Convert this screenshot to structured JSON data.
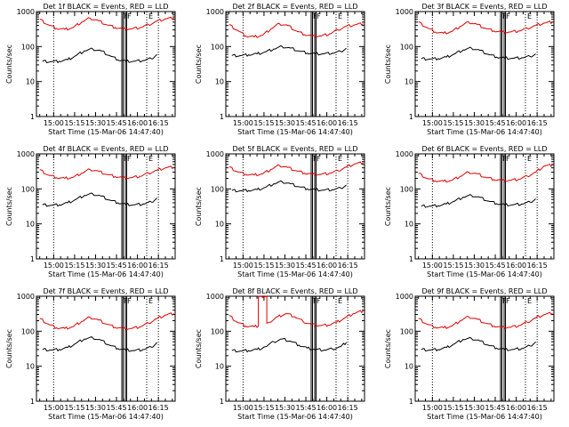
{
  "figure": {
    "colors": {
      "events": "#000000",
      "lld": "#e00000",
      "axis": "#000000",
      "background": "#ffffff"
    }
  },
  "chart_data": [
    {
      "type": "line",
      "title": "Det 1f BLACK = Events, RED = LLD",
      "xlabel": "Start Time (15-Mar-06 14:47:40)",
      "ylabel": "Counts/sec",
      "yscale": "log",
      "ylim": [
        1,
        1000
      ],
      "xlim": [
        "14:47:40",
        "16:27:00"
      ],
      "x_ticks": [
        "15:00",
        "15:15",
        "15:30",
        "15:45",
        "16:00",
        "16:15"
      ],
      "y_ticks": [
        "1",
        "10",
        "100",
        "1000"
      ],
      "markers": [
        "F",
        "F",
        "E"
      ],
      "series": [
        {
          "name": "BLACK = Events",
          "x": [
            "14:52",
            "14:58",
            "15:04",
            "15:10",
            "15:16",
            "15:22",
            "15:28",
            "15:34",
            "15:40",
            "15:46",
            "15:52",
            "15:58",
            "16:04",
            "16:10",
            "16:14"
          ],
          "values": [
            38,
            37,
            38,
            42,
            55,
            75,
            85,
            75,
            55,
            42,
            38,
            38,
            40,
            45,
            60
          ]
        },
        {
          "name": "RED = LLD",
          "x": [
            "14:50",
            "14:56",
            "15:02",
            "15:08",
            "15:14",
            "15:20",
            "15:26",
            "15:32",
            "15:38",
            "15:44",
            "15:50",
            "15:56",
            "16:02",
            "16:08",
            "16:14",
            "16:20",
            "16:26"
          ],
          "values": [
            600,
            420,
            330,
            310,
            350,
            500,
            650,
            550,
            420,
            350,
            320,
            320,
            350,
            420,
            530,
            620,
            650
          ]
        }
      ]
    },
    {
      "type": "line",
      "title": "Det 2f BLACK = Events, RED = LLD",
      "xlabel": "Start Time (15-Mar-06 14:47:40)",
      "ylabel": "Counts/sec",
      "yscale": "log",
      "ylim": [
        1,
        1000
      ],
      "xlim": [
        "14:47:40",
        "16:27:00"
      ],
      "x_ticks": [
        "15:00",
        "15:15",
        "15:30",
        "15:45",
        "16:00",
        "16:15"
      ],
      "y_ticks": [
        "1",
        "10",
        "100",
        "1000"
      ],
      "markers": [
        "F",
        "F",
        "E"
      ],
      "series": [
        {
          "name": "BLACK = Events",
          "x": [
            "14:52",
            "14:58",
            "15:04",
            "15:10",
            "15:16",
            "15:22",
            "15:28",
            "15:34",
            "15:40",
            "15:46",
            "15:52",
            "15:58",
            "16:04",
            "16:10",
            "16:14"
          ],
          "values": [
            55,
            55,
            58,
            62,
            70,
            85,
            100,
            90,
            75,
            65,
            62,
            62,
            65,
            72,
            90
          ]
        },
        {
          "name": "RED = LLD",
          "x": [
            "14:50",
            "14:56",
            "15:02",
            "15:08",
            "15:14",
            "15:20",
            "15:26",
            "15:32",
            "15:38",
            "15:44",
            "15:50",
            "15:56",
            "16:02",
            "16:08",
            "16:14",
            "16:20",
            "16:26"
          ],
          "values": [
            420,
            290,
            200,
            190,
            210,
            320,
            450,
            400,
            280,
            220,
            200,
            200,
            230,
            300,
            380,
            420,
            450
          ]
        }
      ]
    },
    {
      "type": "line",
      "title": "Det 3f BLACK = Events, RED = LLD",
      "xlabel": "Start Time (15-Mar-06 14:47:40)",
      "ylabel": "Counts/sec",
      "yscale": "log",
      "ylim": [
        1,
        1000
      ],
      "xlim": [
        "14:47:40",
        "16:27:00"
      ],
      "x_ticks": [
        "15:00",
        "15:15",
        "15:30",
        "15:45",
        "16:00",
        "16:15"
      ],
      "y_ticks": [
        "1",
        "10",
        "100",
        "1000"
      ],
      "markers": [
        "F",
        "F",
        "E"
      ],
      "series": [
        {
          "name": "BLACK = Events",
          "x": [
            "14:52",
            "14:58",
            "15:04",
            "15:10",
            "15:16",
            "15:22",
            "15:28",
            "15:34",
            "15:40",
            "15:46",
            "15:52",
            "15:58",
            "16:04",
            "16:10",
            "16:14"
          ],
          "values": [
            45,
            44,
            45,
            50,
            62,
            80,
            90,
            78,
            60,
            50,
            47,
            46,
            48,
            52,
            62
          ]
        },
        {
          "name": "RED = LLD",
          "x": [
            "14:50",
            "14:56",
            "15:02",
            "15:08",
            "15:14",
            "15:20",
            "15:26",
            "15:32",
            "15:38",
            "15:44",
            "15:50",
            "15:56",
            "16:02",
            "16:08",
            "16:14",
            "16:20",
            "16:26"
          ],
          "values": [
            500,
            350,
            260,
            240,
            270,
            380,
            500,
            430,
            330,
            280,
            260,
            260,
            280,
            330,
            400,
            470,
            500
          ]
        }
      ]
    },
    {
      "type": "line",
      "title": "Det 4f BLACK = Events, RED = LLD",
      "xlabel": "Start Time (15-Mar-06 14:47:40)",
      "ylabel": "Counts/sec",
      "yscale": "log",
      "ylim": [
        1,
        1000
      ],
      "xlim": [
        "14:47:40",
        "16:27:00"
      ],
      "x_ticks": [
        "15:00",
        "15:15",
        "15:30",
        "15:45",
        "16:00",
        "16:15"
      ],
      "y_ticks": [
        "1",
        "10",
        "100",
        "1000"
      ],
      "markers": [
        "F",
        "F",
        "E"
      ],
      "series": [
        {
          "name": "BLACK = Events",
          "x": [
            "14:52",
            "14:58",
            "15:04",
            "15:10",
            "15:16",
            "15:22",
            "15:28",
            "15:34",
            "15:40",
            "15:46",
            "15:52",
            "15:58",
            "16:04",
            "16:10",
            "16:14"
          ],
          "values": [
            35,
            34,
            35,
            40,
            50,
            65,
            72,
            62,
            48,
            40,
            36,
            35,
            37,
            42,
            55
          ]
        },
        {
          "name": "RED = LLD",
          "x": [
            "14:50",
            "14:56",
            "15:02",
            "15:08",
            "15:14",
            "15:20",
            "15:26",
            "15:32",
            "15:38",
            "15:44",
            "15:50",
            "15:56",
            "16:02",
            "16:08",
            "16:14",
            "16:20",
            "16:26"
          ],
          "values": [
            350,
            250,
            210,
            200,
            215,
            280,
            360,
            320,
            260,
            225,
            210,
            210,
            230,
            280,
            340,
            400,
            420
          ]
        }
      ]
    },
    {
      "type": "line",
      "title": "Det 5f BLACK = Events, RED = LLD",
      "xlabel": "Start Time (15-Mar-06 14:47:40)",
      "ylabel": "Counts/sec",
      "yscale": "log",
      "ylim": [
        1,
        1000
      ],
      "xlim": [
        "14:47:40",
        "16:27:00"
      ],
      "x_ticks": [
        "15:00",
        "15:15",
        "15:30",
        "15:45",
        "16:00",
        "16:15"
      ],
      "y_ticks": [
        "1",
        "10",
        "100",
        "1000"
      ],
      "markers": [
        "F",
        "F",
        "E"
      ],
      "series": [
        {
          "name": "BLACK = Events",
          "x": [
            "14:52",
            "14:58",
            "15:04",
            "15:10",
            "15:16",
            "15:22",
            "15:28",
            "15:34",
            "15:40",
            "15:46",
            "15:52",
            "15:58",
            "16:04",
            "16:10",
            "16:14"
          ],
          "values": [
            90,
            88,
            90,
            95,
            110,
            140,
            160,
            140,
            115,
            100,
            95,
            92,
            95,
            105,
            130
          ]
        },
        {
          "name": "RED = LLD",
          "x": [
            "14:50",
            "14:56",
            "15:02",
            "15:08",
            "15:14",
            "15:20",
            "15:26",
            "15:32",
            "15:38",
            "15:44",
            "15:50",
            "15:56",
            "16:02",
            "16:08",
            "16:14",
            "16:20",
            "16:26"
          ],
          "values": [
            420,
            310,
            260,
            250,
            270,
            360,
            470,
            410,
            330,
            280,
            265,
            260,
            280,
            330,
            420,
            520,
            560
          ]
        }
      ]
    },
    {
      "type": "line",
      "title": "Det 6f BLACK = Events, RED = LLD",
      "xlabel": "Start Time (15-Mar-06 14:47:40)",
      "ylabel": "Counts/sec",
      "yscale": "log",
      "ylim": [
        1,
        1000
      ],
      "xlim": [
        "14:47:40",
        "16:27:00"
      ],
      "x_ticks": [
        "15:00",
        "15:15",
        "15:30",
        "15:45",
        "16:00",
        "16:15"
      ],
      "y_ticks": [
        "1",
        "10",
        "100",
        "1000"
      ],
      "markers": [
        "F",
        "F",
        "E"
      ],
      "series": [
        {
          "name": "BLACK = Events",
          "x": [
            "14:52",
            "14:58",
            "15:04",
            "15:10",
            "15:16",
            "15:22",
            "15:28",
            "15:34",
            "15:40",
            "15:46",
            "15:52",
            "15:58",
            "16:04",
            "16:10",
            "16:14"
          ],
          "values": [
            32,
            32,
            33,
            37,
            45,
            58,
            65,
            57,
            45,
            38,
            35,
            35,
            37,
            42,
            52
          ]
        },
        {
          "name": "RED = LLD",
          "x": [
            "14:50",
            "14:56",
            "15:02",
            "15:08",
            "15:14",
            "15:20",
            "15:26",
            "15:32",
            "15:38",
            "15:44",
            "15:50",
            "15:56",
            "16:02",
            "16:08",
            "16:14",
            "16:20",
            "16:26"
          ],
          "values": [
            280,
            200,
            170,
            165,
            175,
            230,
            300,
            270,
            215,
            185,
            175,
            175,
            190,
            230,
            300,
            450,
            480
          ]
        }
      ]
    },
    {
      "type": "line",
      "title": "Det 7f BLACK = Events, RED = LLD",
      "xlabel": "Start Time (15-Mar-06 14:47:40)",
      "ylabel": "Counts/sec",
      "yscale": "log",
      "ylim": [
        1,
        1000
      ],
      "xlim": [
        "14:47:40",
        "16:27:00"
      ],
      "x_ticks": [
        "15:00",
        "15:15",
        "15:30",
        "15:45",
        "16:00",
        "16:15"
      ],
      "y_ticks": [
        "1",
        "10",
        "100",
        "1000"
      ],
      "markers": [
        "F",
        "F",
        "E"
      ],
      "series": [
        {
          "name": "BLACK = Events",
          "x": [
            "14:52",
            "14:58",
            "15:04",
            "15:10",
            "15:16",
            "15:22",
            "15:28",
            "15:34",
            "15:40",
            "15:46",
            "15:52",
            "15:58",
            "16:04",
            "16:10",
            "16:14"
          ],
          "values": [
            30,
            29,
            30,
            34,
            45,
            60,
            65,
            55,
            40,
            32,
            29,
            28,
            30,
            35,
            48
          ]
        },
        {
          "name": "RED = LLD",
          "x": [
            "14:50",
            "14:56",
            "15:02",
            "15:08",
            "15:14",
            "15:20",
            "15:26",
            "15:32",
            "15:38",
            "15:44",
            "15:50",
            "15:56",
            "16:02",
            "16:08",
            "16:14",
            "16:20",
            "16:26"
          ],
          "values": [
            230,
            160,
            125,
            120,
            135,
            190,
            250,
            210,
            160,
            130,
            120,
            120,
            135,
            170,
            230,
            290,
            320
          ]
        }
      ]
    },
    {
      "type": "line",
      "title": "Det 8f BLACK = Events, RED = LLD",
      "xlabel": "Start Time (15-Mar-06 14:47:40)",
      "ylabel": "Counts/sec",
      "yscale": "log",
      "ylim": [
        1,
        1000
      ],
      "xlim": [
        "14:47:40",
        "16:27:00"
      ],
      "x_ticks": [
        "15:00",
        "15:15",
        "15:30",
        "15:45",
        "16:00",
        "16:15"
      ],
      "y_ticks": [
        "1",
        "10",
        "100",
        "1000"
      ],
      "markers": [
        "F",
        "F",
        "E"
      ],
      "series": [
        {
          "name": "BLACK = Events",
          "x": [
            "14:52",
            "14:58",
            "15:04",
            "15:10",
            "15:14",
            "15:16",
            "15:22",
            "15:28",
            "15:34",
            "15:40",
            "15:46",
            "15:52",
            "15:58",
            "16:04",
            "16:10",
            "16:14"
          ],
          "values": [
            28,
            27,
            28,
            30,
            33,
            36,
            50,
            60,
            52,
            40,
            33,
            30,
            29,
            31,
            36,
            48
          ]
        },
        {
          "name": "RED = LLD",
          "x": [
            "14:50",
            "14:56",
            "15:02",
            "15:08",
            "15:11",
            "15:11",
            "15:13",
            "15:17",
            "15:17",
            "15:19",
            "15:25",
            "15:31",
            "15:37",
            "15:43",
            "15:49",
            "15:55",
            "16:01",
            "16:07",
            "16:13",
            "16:19",
            "16:26"
          ],
          "values": [
            280,
            180,
            140,
            135,
            140,
            1000,
            1000,
            1000,
            170,
            180,
            260,
            320,
            260,
            190,
            155,
            145,
            150,
            180,
            240,
            320,
            380
          ]
        }
      ]
    },
    {
      "type": "line",
      "title": "Det 9f BLACK = Events, RED = LLD",
      "xlabel": "Start Time (15-Mar-06 14:47:40)",
      "ylabel": "Counts/sec",
      "yscale": "log",
      "ylim": [
        1,
        1000
      ],
      "xlim": [
        "14:47:40",
        "16:27:00"
      ],
      "x_ticks": [
        "15:00",
        "15:15",
        "15:30",
        "15:45",
        "16:00",
        "16:15"
      ],
      "y_ticks": [
        "1",
        "10",
        "100",
        "1000"
      ],
      "markers": [
        "F",
        "F",
        "E"
      ],
      "series": [
        {
          "name": "BLACK = Events",
          "x": [
            "14:52",
            "14:58",
            "15:04",
            "15:10",
            "15:16",
            "15:22",
            "15:28",
            "15:34",
            "15:40",
            "15:46",
            "15:52",
            "15:58",
            "16:04",
            "16:10",
            "16:14"
          ],
          "values": [
            30,
            29,
            30,
            34,
            44,
            58,
            62,
            53,
            40,
            33,
            30,
            30,
            32,
            38,
            50
          ]
        },
        {
          "name": "RED = LLD",
          "x": [
            "14:50",
            "14:56",
            "15:02",
            "15:08",
            "15:14",
            "15:20",
            "15:26",
            "15:32",
            "15:38",
            "15:44",
            "15:50",
            "15:56",
            "16:02",
            "16:08",
            "16:14",
            "16:20",
            "16:26"
          ],
          "values": [
            230,
            160,
            130,
            125,
            140,
            200,
            260,
            220,
            170,
            140,
            130,
            130,
            145,
            180,
            240,
            300,
            330
          ]
        }
      ]
    }
  ]
}
